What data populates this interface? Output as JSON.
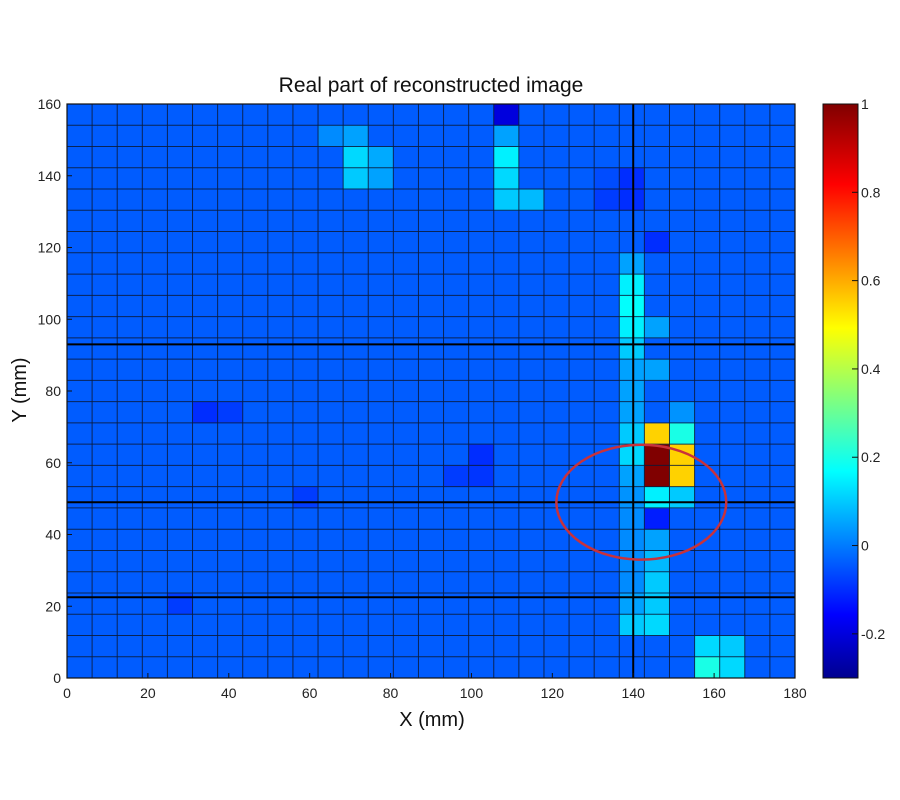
{
  "chart_data": {
    "type": "heatmap",
    "title": "Real part of reconstructed image",
    "xlabel": "X (mm)",
    "ylabel": "Y (mm)",
    "xlim": [
      0,
      180
    ],
    "ylim": [
      0,
      160
    ],
    "x_ticks": [
      0,
      20,
      40,
      60,
      80,
      100,
      120,
      140,
      160,
      180
    ],
    "y_ticks": [
      0,
      20,
      40,
      60,
      80,
      100,
      120,
      140,
      160
    ],
    "grid_cols": 29,
    "grid_rows": 27,
    "background_value": -0.04,
    "clim": [
      -0.3,
      1
    ],
    "colormap": "jet",
    "colorbar_ticks": [
      1,
      0.8,
      0.6,
      0.4,
      0.2,
      0,
      -0.2
    ],
    "colorbar_tick_labels": [
      "1",
      "0.8",
      "0.6",
      "0.4",
      "0.2",
      "0",
      "-0.2"
    ],
    "grid": true,
    "highlight_cells": [
      {
        "col": 22,
        "row": 2,
        "value": 0.1
      },
      {
        "col": 22,
        "row": 3,
        "value": 0.05
      },
      {
        "col": 22,
        "row": 4,
        "value": 0.02
      },
      {
        "col": 22,
        "row": 5,
        "value": 0.02
      },
      {
        "col": 22,
        "row": 6,
        "value": 0.02
      },
      {
        "col": 22,
        "row": 7,
        "value": 0.02
      },
      {
        "col": 22,
        "row": 8,
        "value": 0.03
      },
      {
        "col": 22,
        "row": 9,
        "value": 0.05
      },
      {
        "col": 22,
        "row": 10,
        "value": 0.12
      },
      {
        "col": 22,
        "row": 11,
        "value": 0.1
      },
      {
        "col": 22,
        "row": 12,
        "value": 0.05
      },
      {
        "col": 22,
        "row": 13,
        "value": 0.05
      },
      {
        "col": 22,
        "row": 14,
        "value": 0.05
      },
      {
        "col": 22,
        "row": 15,
        "value": 0.1
      },
      {
        "col": 22,
        "row": 16,
        "value": 0.15
      },
      {
        "col": 22,
        "row": 17,
        "value": 0.17
      },
      {
        "col": 22,
        "row": 18,
        "value": 0.15
      },
      {
        "col": 22,
        "row": 19,
        "value": 0.05
      },
      {
        "col": 23,
        "row": 2,
        "value": 0.12
      },
      {
        "col": 23,
        "row": 3,
        "value": 0.1
      },
      {
        "col": 23,
        "row": 4,
        "value": 0.1
      },
      {
        "col": 23,
        "row": 5,
        "value": 0.08
      },
      {
        "col": 23,
        "row": 6,
        "value": 0.05
      },
      {
        "col": 23,
        "row": 7,
        "value": -0.12
      },
      {
        "col": 23,
        "row": 8,
        "value": 0.15
      },
      {
        "col": 23,
        "row": 9,
        "value": 1.0
      },
      {
        "col": 23,
        "row": 10,
        "value": 1.0
      },
      {
        "col": 23,
        "row": 11,
        "value": 0.55
      },
      {
        "col": 23,
        "row": 14,
        "value": 0.05
      },
      {
        "col": 23,
        "row": 16,
        "value": 0.05
      },
      {
        "col": 23,
        "row": 20,
        "value": -0.1
      },
      {
        "col": 24,
        "row": 8,
        "value": 0.1
      },
      {
        "col": 24,
        "row": 9,
        "value": 0.55
      },
      {
        "col": 24,
        "row": 10,
        "value": 0.55
      },
      {
        "col": 24,
        "row": 11,
        "value": 0.2
      },
      {
        "col": 24,
        "row": 12,
        "value": 0.03
      },
      {
        "col": 25,
        "row": 0,
        "value": 0.2
      },
      {
        "col": 25,
        "row": 1,
        "value": 0.12
      },
      {
        "col": 26,
        "row": 0,
        "value": 0.12
      },
      {
        "col": 26,
        "row": 1,
        "value": 0.1
      },
      {
        "col": 17,
        "row": 22,
        "value": 0.1
      },
      {
        "col": 17,
        "row": 23,
        "value": 0.12
      },
      {
        "col": 17,
        "row": 24,
        "value": 0.15
      },
      {
        "col": 17,
        "row": 25,
        "value": 0.05
      },
      {
        "col": 17,
        "row": 26,
        "value": -0.2
      },
      {
        "col": 18,
        "row": 22,
        "value": 0.08
      },
      {
        "col": 11,
        "row": 23,
        "value": 0.1
      },
      {
        "col": 11,
        "row": 24,
        "value": 0.12
      },
      {
        "col": 11,
        "row": 25,
        "value": 0.05
      },
      {
        "col": 10,
        "row": 25,
        "value": 0.02
      },
      {
        "col": 12,
        "row": 24,
        "value": 0.06
      },
      {
        "col": 12,
        "row": 23,
        "value": 0.05
      },
      {
        "col": 21,
        "row": 22,
        "value": -0.08
      },
      {
        "col": 21,
        "row": 23,
        "value": -0.06
      },
      {
        "col": 22,
        "row": 23,
        "value": -0.1
      },
      {
        "col": 22,
        "row": 22,
        "value": -0.1
      },
      {
        "col": 16,
        "row": 10,
        "value": -0.1
      },
      {
        "col": 16,
        "row": 9,
        "value": -0.09
      },
      {
        "col": 15,
        "row": 9,
        "value": -0.08
      },
      {
        "col": 5,
        "row": 12,
        "value": -0.1
      },
      {
        "col": 6,
        "row": 12,
        "value": -0.08
      },
      {
        "col": 9,
        "row": 8,
        "value": -0.08
      },
      {
        "col": 4,
        "row": 3,
        "value": -0.08
      }
    ],
    "annotations": [
      {
        "type": "circle",
        "center_x": 142,
        "center_y": 49,
        "radius_x": 21,
        "radius_y": 16,
        "color": "#c8323c"
      }
    ],
    "reference_lines": {
      "vertical_x": [
        140
      ],
      "horizontal_y": [
        22.5,
        49,
        93
      ]
    }
  }
}
